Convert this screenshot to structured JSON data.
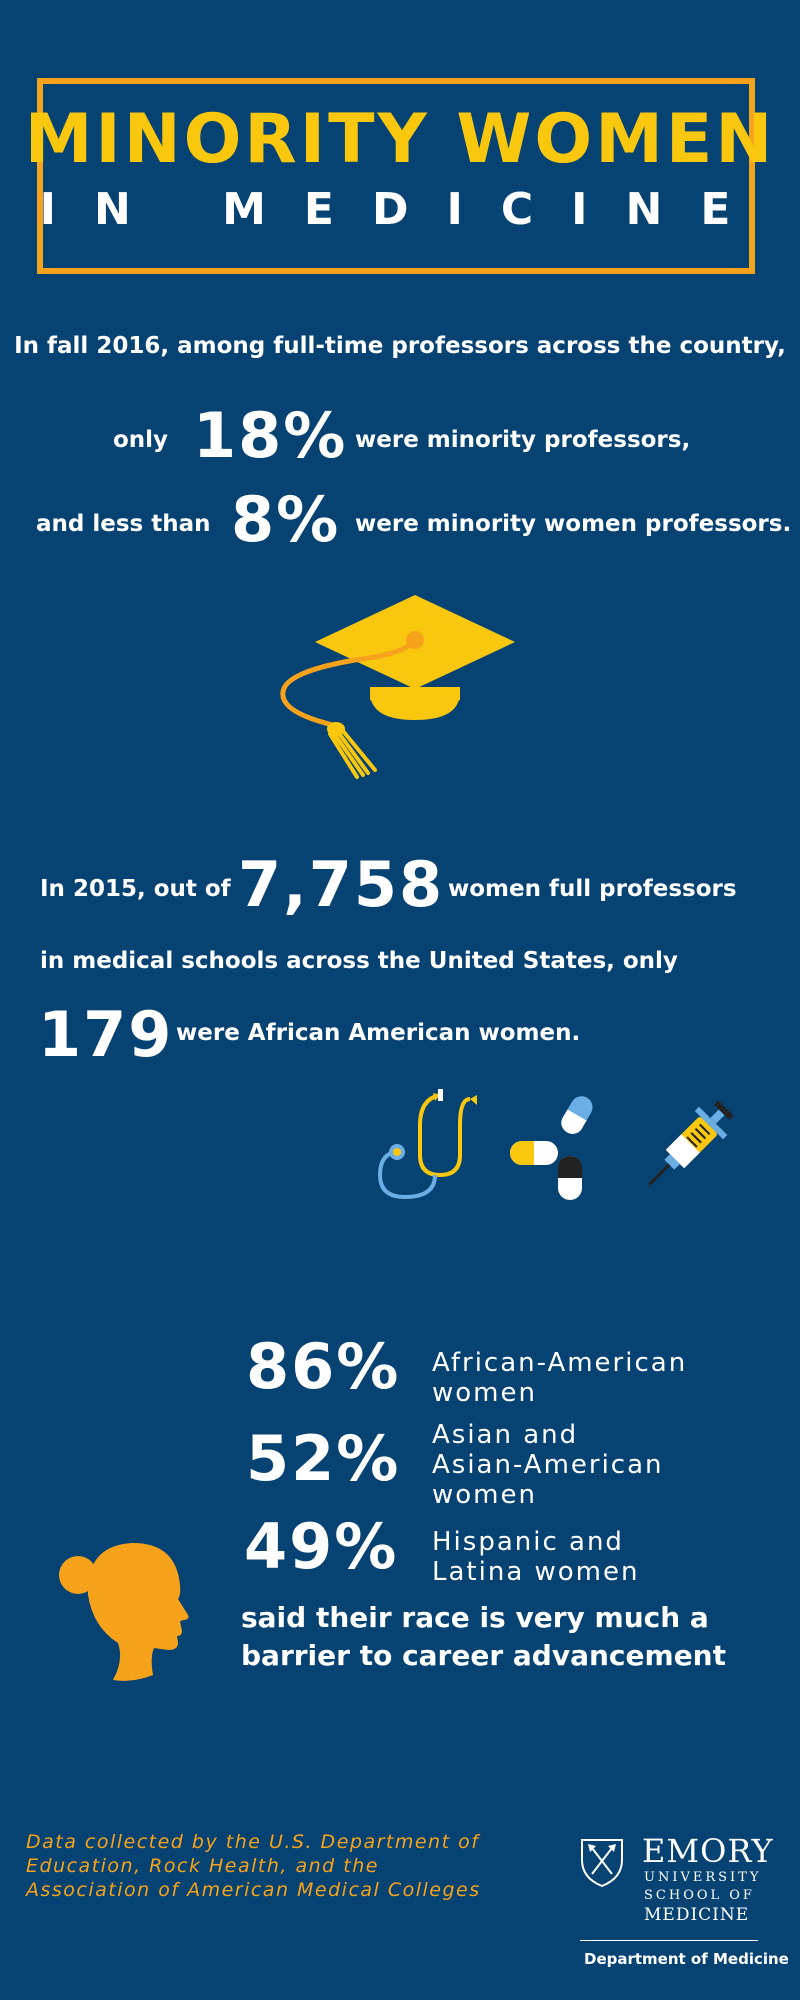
{
  "header": {
    "title": "MINORITY WOMEN",
    "subtitle": "IN MEDICINE"
  },
  "section1": {
    "intro": "In fall 2016, among full-time professors across the country,",
    "line2_prefix": "only",
    "line2_value": "18%",
    "line2_suffix": "were minority professors,",
    "line3_prefix": "and less than",
    "line3_value": "8%",
    "line3_suffix": "were minority women professors."
  },
  "section2": {
    "line1_prefix": "In 2015, out of",
    "line1_value": "7,758",
    "line1_suffix": "women full professors",
    "line2": "in medical schools across the United States, only",
    "line3_value": "179",
    "line3_suffix": "were African American women."
  },
  "section3": {
    "stats": [
      {
        "value": "86%",
        "label1": "African-American",
        "label2": "women",
        "label3": ""
      },
      {
        "value": "52%",
        "label1": "Asian and",
        "label2": "Asian-American",
        "label3": "women"
      },
      {
        "value": "49%",
        "label1": "Hispanic and",
        "label2": "Latina women",
        "label3": ""
      }
    ],
    "conclusion1": "said their race is very much a",
    "conclusion2": "barrier to career advancement"
  },
  "footer": {
    "source1": "Data collected by the U.S. Department of",
    "source2": "Education, Rock Health, and the",
    "source3": "Association of American Medical Colleges",
    "logo_name": "EMORY",
    "logo_line1": "UNIVERSITY",
    "logo_line2": "SCHOOL OF",
    "logo_line3": "MEDICINE",
    "department": "Department of Medicine"
  },
  "colors": {
    "background": "#074372",
    "accent_yellow": "#f9c80e",
    "accent_orange": "#f7a21b",
    "text": "#ffffff"
  },
  "icons": [
    "graduation-cap-icon",
    "stethoscope-icon",
    "pills-icon",
    "syringe-icon",
    "woman-head-silhouette-icon",
    "emory-shield-icon"
  ]
}
